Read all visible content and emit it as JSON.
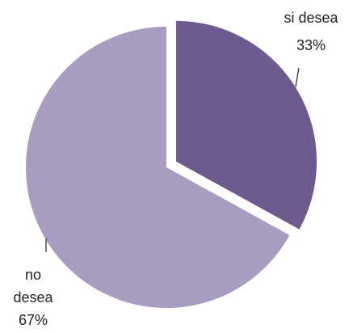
{
  "chart_data": {
    "type": "pie",
    "categories": [
      "si desea",
      "no desea"
    ],
    "values": [
      33,
      67
    ],
    "value_labels": [
      "33%",
      "67%"
    ],
    "colors": [
      "#6f5a8f",
      "#a89cc0"
    ],
    "explode": [
      true,
      false
    ]
  }
}
